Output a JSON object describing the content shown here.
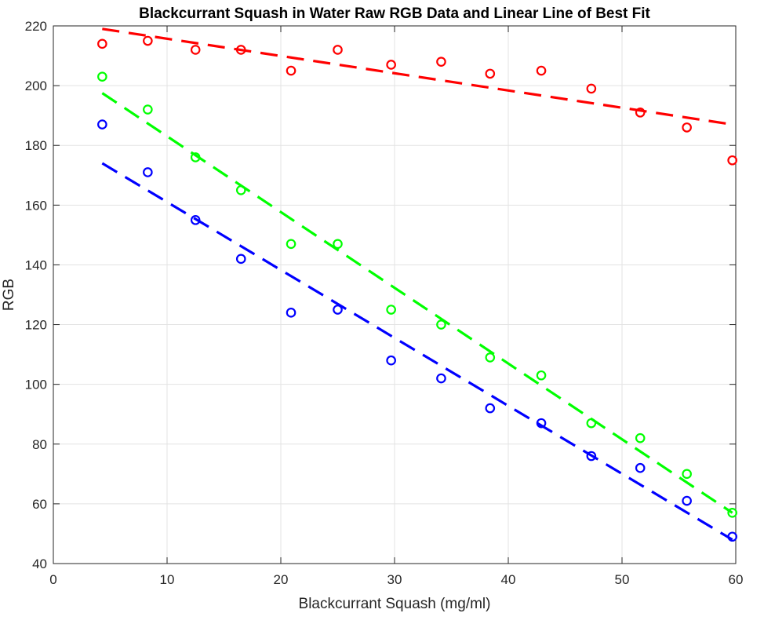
{
  "chart_data": {
    "type": "scatter",
    "title": "Blackcurrant Squash in Water Raw RGB Data and Linear Line of Best Fit",
    "xlabel": "Blackcurrant Squash (mg/ml)",
    "ylabel": "RGB",
    "xlim": [
      0,
      60
    ],
    "ylim": [
      40,
      220
    ],
    "xticks": [
      0,
      10,
      20,
      30,
      40,
      50,
      60
    ],
    "yticks": [
      40,
      60,
      80,
      100,
      120,
      140,
      160,
      180,
      200,
      220
    ],
    "grid": true,
    "legend": "none",
    "x": [
      4.3,
      8.3,
      12.5,
      16.5,
      20.9,
      25.0,
      29.7,
      34.1,
      38.4,
      42.9,
      47.3,
      51.6,
      55.7,
      59.7
    ],
    "series": [
      {
        "color": "#ff0000",
        "values": [
          214,
          215,
          212,
          212,
          205,
          212,
          207,
          208,
          204,
          205,
          199,
          191,
          186,
          175
        ],
        "fit": [
          [
            4.3,
            219
          ],
          [
            59.7,
            187
          ]
        ]
      },
      {
        "color": "#00ff00",
        "values": [
          203,
          192,
          176,
          165,
          147,
          147,
          125,
          120,
          109,
          103,
          87,
          82,
          70,
          57
        ],
        "fit": [
          [
            4.3,
            197.5
          ],
          [
            59.7,
            57
          ]
        ]
      },
      {
        "color": "#0000ff",
        "values": [
          187,
          171,
          155,
          142,
          124,
          125,
          108,
          102,
          92,
          87,
          76,
          72,
          61,
          49
        ],
        "fit": [
          [
            4.3,
            174
          ],
          [
            59.7,
            48
          ]
        ]
      }
    ]
  }
}
